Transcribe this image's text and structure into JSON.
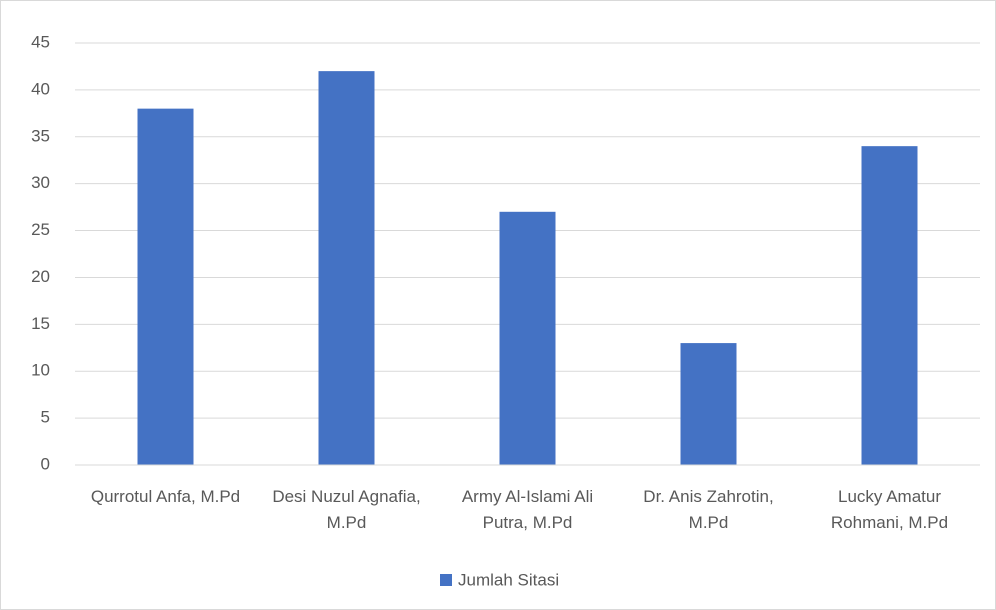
{
  "chart_data": {
    "type": "bar",
    "categories": [
      "Qurrotul Anfa, M.Pd",
      "Desi Nuzul Agnafia, M.Pd",
      "Army Al-Islami Ali Putra, M.Pd",
      "Dr. Anis Zahrotin, M.Pd",
      "Lucky Amatur Rohmani, M.Pd"
    ],
    "series": [
      {
        "name": "Jumlah Sitasi",
        "color": "#4472c4",
        "values": [
          38,
          42,
          27,
          13,
          34
        ]
      }
    ],
    "ylim": [
      0,
      45
    ],
    "yticks": [
      0,
      5,
      10,
      15,
      20,
      25,
      30,
      35,
      40,
      45
    ],
    "grid": true,
    "legend": "bottom"
  }
}
